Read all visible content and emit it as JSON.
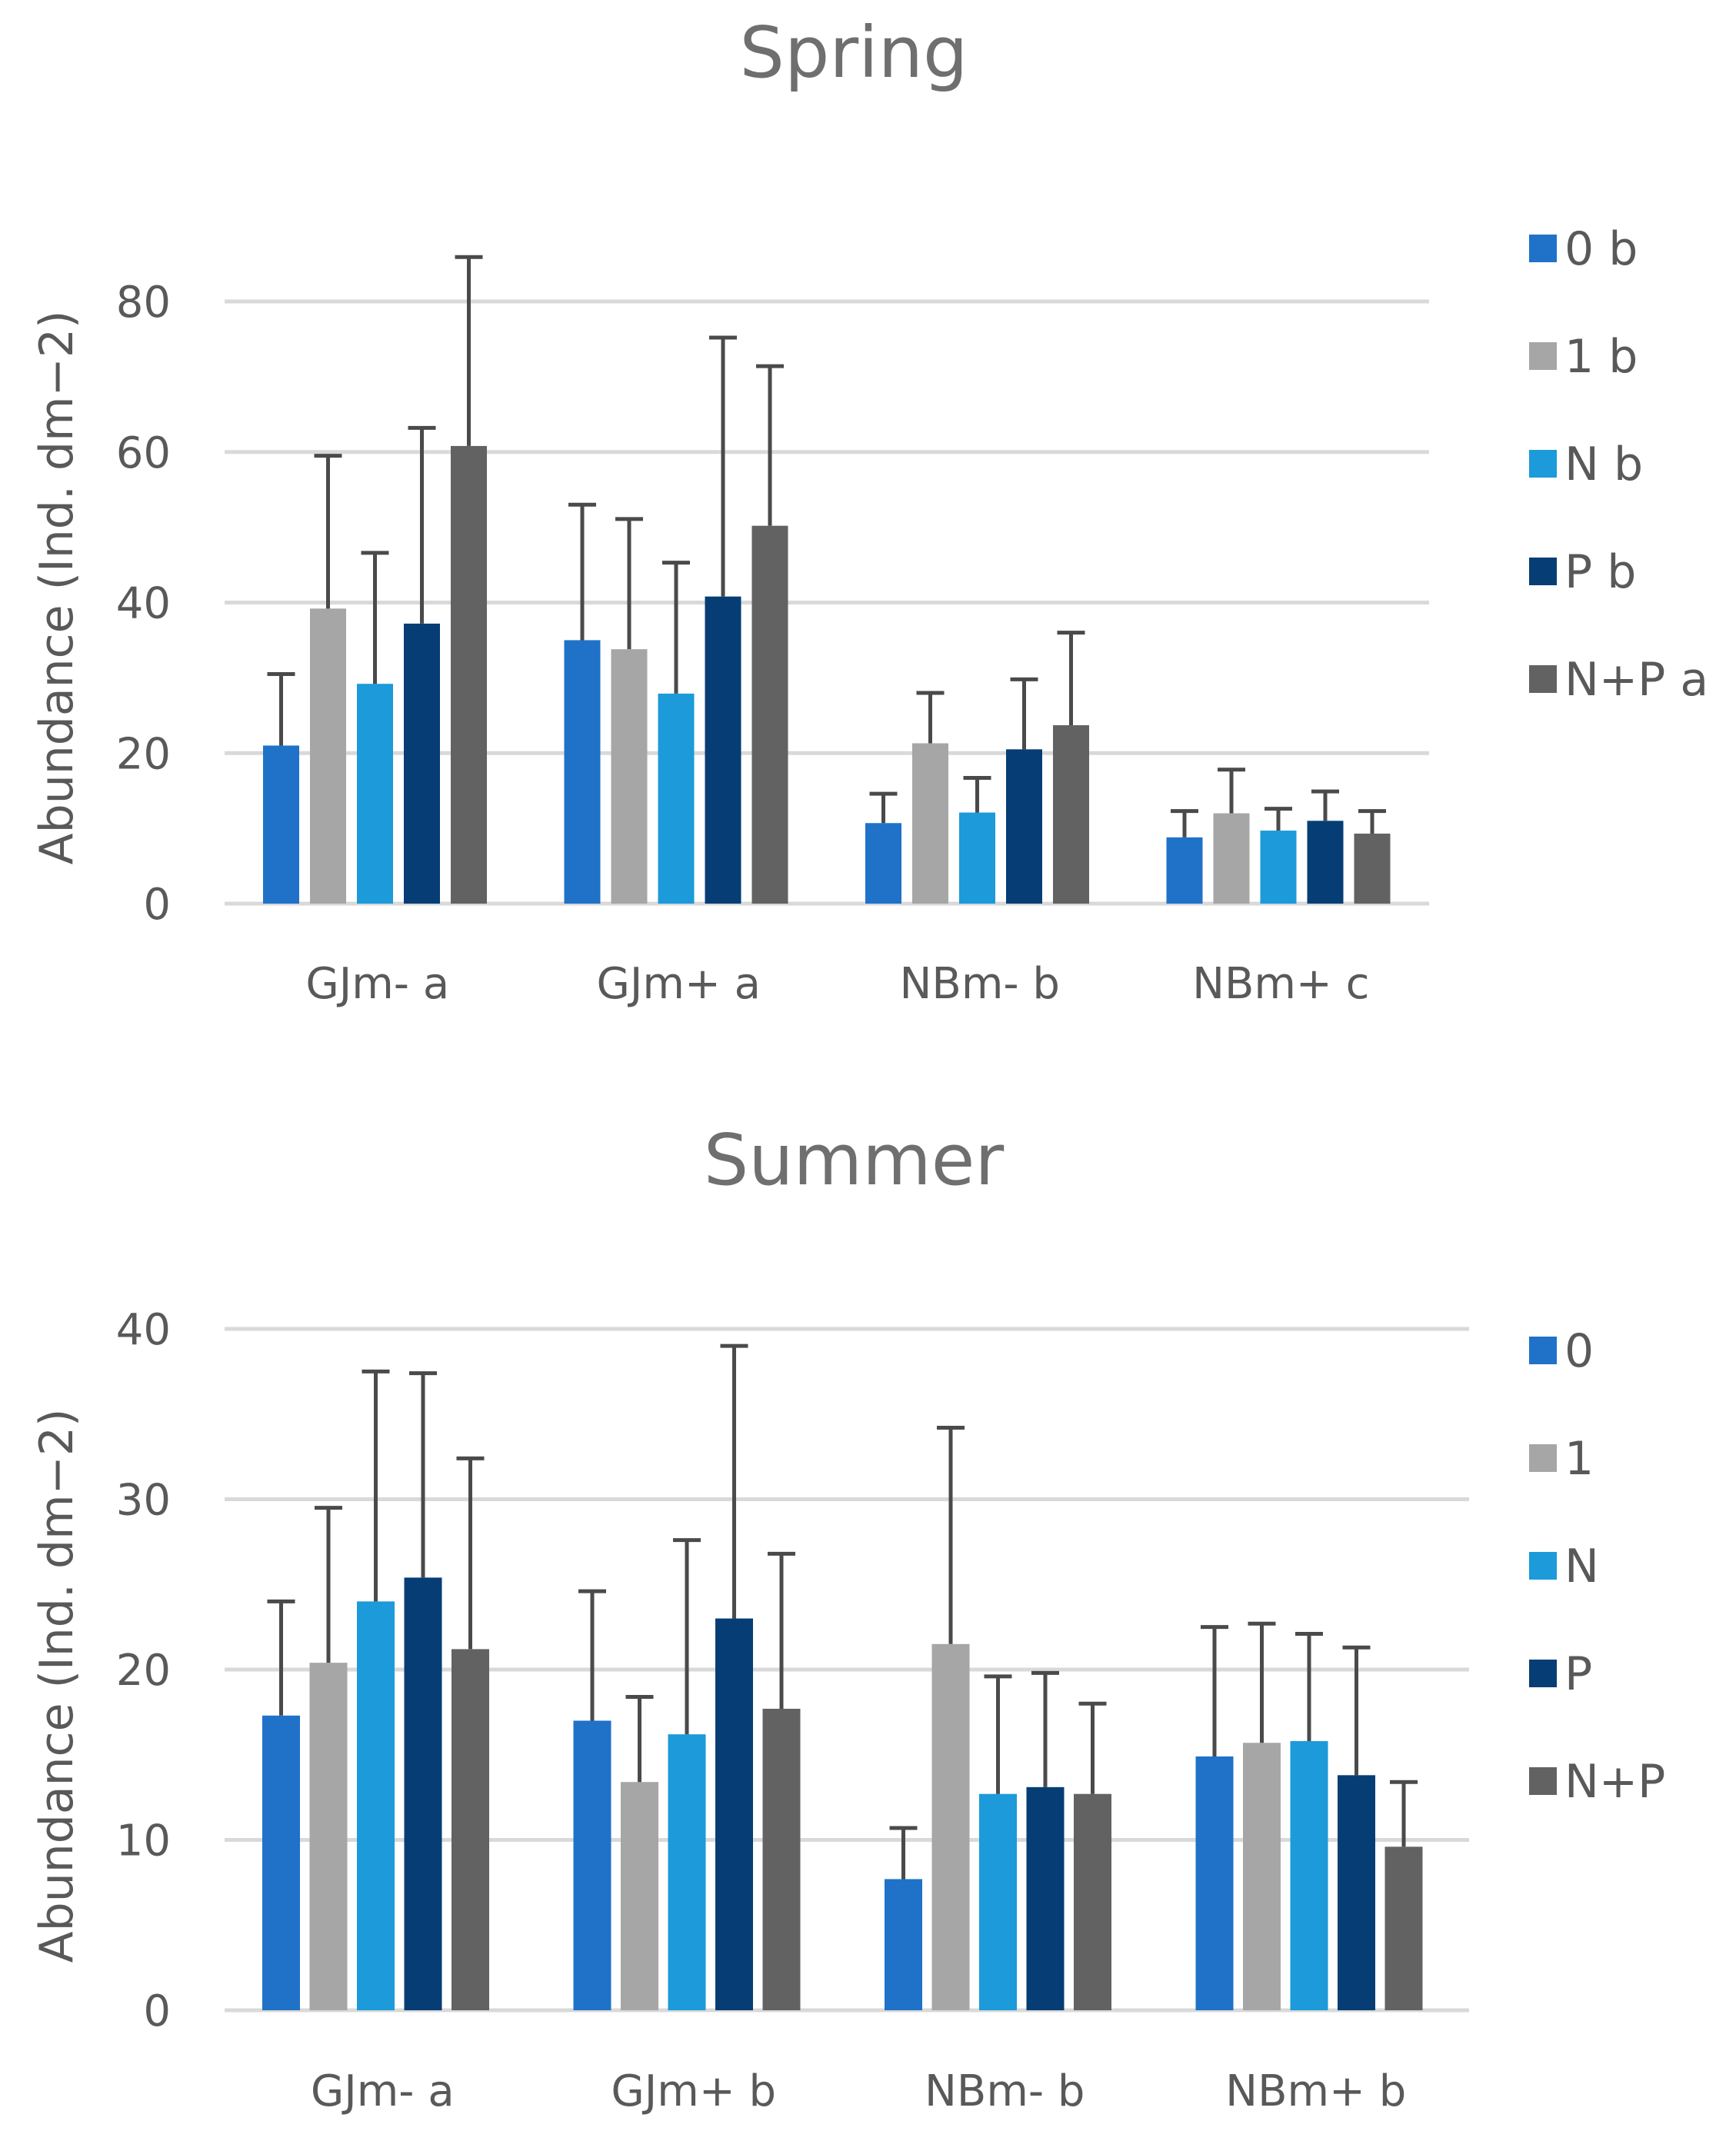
{
  "chart_data": [
    {
      "type": "bar",
      "title": "Spring",
      "ylabel": "Abundance (Ind. dm−2)",
      "xlabel": "",
      "ylim": [
        0,
        80
      ],
      "yticks": [
        "0",
        "20",
        "40",
        "60",
        "80"
      ],
      "categories": [
        "GJm- a",
        "GJm+ a",
        "NBm- b",
        "NBm+ c"
      ],
      "grid": true,
      "legend_position": "right",
      "series": [
        {
          "name": "0 b",
          "color": "#1f72c8",
          "values": [
            21,
            35,
            10.7,
            8.8
          ],
          "errors": [
            9.5,
            18,
            3.9,
            3.5
          ]
        },
        {
          "name": "1 b",
          "color": "#a6a6a6",
          "values": [
            39.2,
            33.8,
            21.3,
            12
          ],
          "errors": [
            20.3,
            17.3,
            6.7,
            5.8
          ]
        },
        {
          "name": "N b",
          "color": "#1c9ad9",
          "values": [
            29.2,
            27.9,
            12.1,
            9.7
          ],
          "errors": [
            17.4,
            17.4,
            4.6,
            2.9
          ]
        },
        {
          "name": "P b",
          "color": "#063d74",
          "values": [
            37.2,
            40.8,
            20.5,
            11
          ],
          "errors": [
            26,
            34.4,
            9.3,
            3.9
          ]
        },
        {
          "name": "N+P a",
          "color": "#626262",
          "values": [
            60.8,
            50.2,
            23.7,
            9.3
          ],
          "errors": [
            25.1,
            21.2,
            12.3,
            3
          ]
        }
      ]
    },
    {
      "type": "bar",
      "title": "Summer",
      "ylabel": "Abundance (Ind. dm−2)",
      "xlabel": "",
      "ylim": [
        0,
        40
      ],
      "yticks": [
        "0",
        "10",
        "20",
        "30",
        "40"
      ],
      "categories": [
        "GJm- a",
        "GJm+ b",
        "NBm- b",
        "NBm+ b"
      ],
      "grid": true,
      "legend_position": "right",
      "series": [
        {
          "name": "0",
          "color": "#1f72c8",
          "values": [
            17.3,
            17,
            7.7,
            14.9
          ],
          "errors": [
            6.7,
            7.6,
            3,
            7.6
          ]
        },
        {
          "name": "1",
          "color": "#a6a6a6",
          "values": [
            20.4,
            13.4,
            21.5,
            15.7
          ],
          "errors": [
            9.1,
            5,
            12.7,
            7
          ]
        },
        {
          "name": "N",
          "color": "#1c9ad9",
          "values": [
            24,
            16.2,
            12.7,
            15.8
          ],
          "errors": [
            13.5,
            11.4,
            6.9,
            6.3
          ]
        },
        {
          "name": "P",
          "color": "#063d74",
          "values": [
            25.4,
            23,
            13.1,
            13.8
          ],
          "errors": [
            12,
            16,
            6.7,
            7.5
          ]
        },
        {
          "name": "N+P",
          "color": "#626262",
          "values": [
            21.2,
            17.7,
            12.7,
            9.6
          ],
          "errors": [
            11.2,
            9.1,
            5.3,
            3.8
          ]
        }
      ]
    }
  ]
}
